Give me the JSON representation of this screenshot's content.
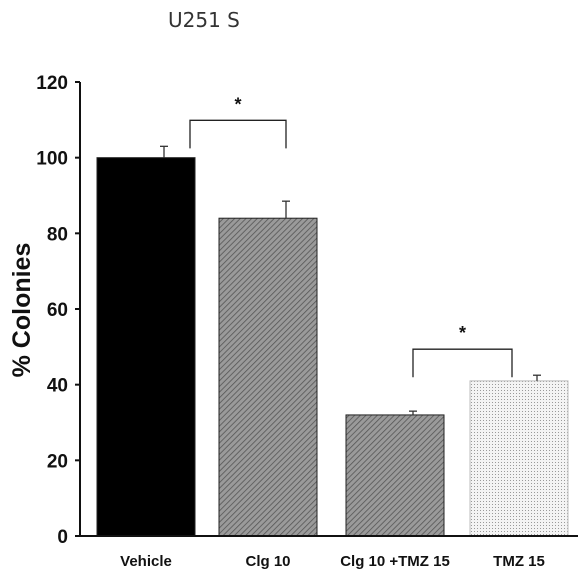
{
  "chart_data": {
    "type": "bar",
    "title": "U251 S",
    "ylabel": "% Colonies",
    "xlabel": "",
    "ylim": [
      0,
      120
    ],
    "yticks": [
      0,
      20,
      40,
      60,
      80,
      100,
      120
    ],
    "categories": [
      "Vehicle",
      "Clg 10",
      "Clg 10 +TMZ 15",
      "TMZ 15"
    ],
    "values": [
      100,
      84,
      32,
      41
    ],
    "errors": [
      3,
      4.5,
      1,
      1.5
    ],
    "fills": [
      "solid-black",
      "diagonal-hatch-gray",
      "diagonal-hatch-gray",
      "dotted-light"
    ],
    "significance": [
      {
        "from": 0,
        "to": 1,
        "label": "*"
      },
      {
        "from": 2,
        "to": 3,
        "label": "*"
      }
    ],
    "grid": false,
    "legend": "none"
  }
}
